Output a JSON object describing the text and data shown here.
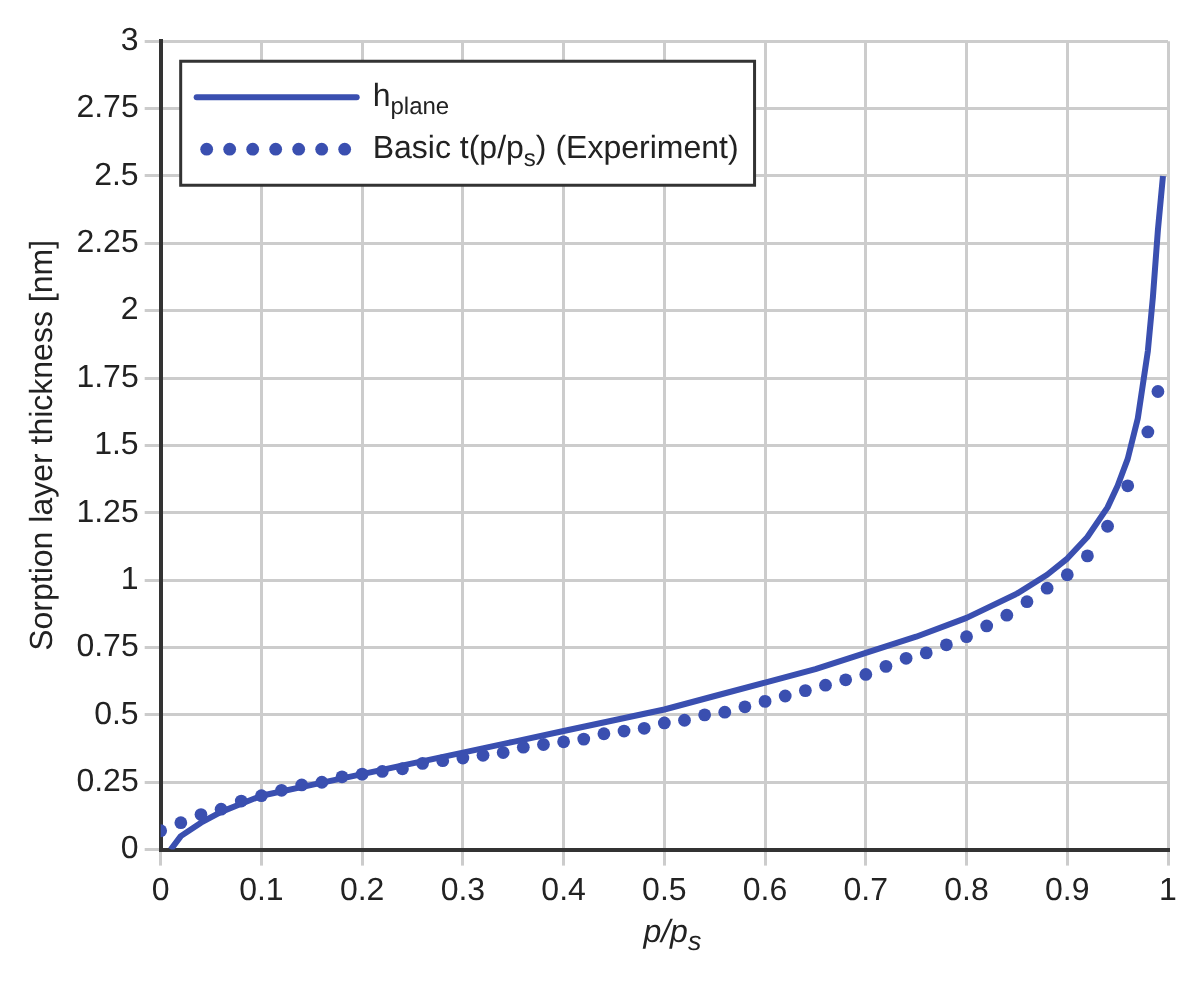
{
  "chart_data": {
    "type": "line",
    "xlabel": "p/p$_{s}$",
    "ylabel": "Sorption layer thickness [nm]",
    "xlim": [
      0,
      1
    ],
    "xticks": [
      0,
      0.1,
      0.2,
      0.3,
      0.4,
      0.5,
      0.6,
      0.7,
      0.8,
      0.9,
      1
    ],
    "ylim": [
      0,
      3
    ],
    "yticks": [
      0,
      0.25,
      0.5,
      0.75,
      1,
      1.25,
      1.5,
      1.75,
      2,
      2.25,
      2.5,
      2.75,
      3
    ],
    "grid": true,
    "legend": "top left",
    "series": [
      {
        "name": "h$_{plane}$",
        "color": "#3a4fb0",
        "line_style": "solid",
        "marker": "none",
        "x": [
          0.01,
          0.02,
          0.04,
          0.06,
          0.08,
          0.1,
          0.15,
          0.2,
          0.25,
          0.3,
          0.35,
          0.4,
          0.45,
          0.5,
          0.55,
          0.6,
          0.65,
          0.7,
          0.75,
          0.8,
          0.85,
          0.88,
          0.9,
          0.92,
          0.94,
          0.95,
          0.96,
          0.97,
          0.98,
          0.985,
          0.99,
          0.995
        ],
        "values": [
          0,
          0.05,
          0.1,
          0.14,
          0.17,
          0.2,
          0.24,
          0.28,
          0.32,
          0.36,
          0.4,
          0.44,
          0.48,
          0.52,
          0.57,
          0.62,
          0.67,
          0.73,
          0.79,
          0.86,
          0.95,
          1.02,
          1.08,
          1.16,
          1.27,
          1.35,
          1.45,
          1.6,
          1.85,
          2.05,
          2.3,
          2.5
        ]
      },
      {
        "name": "Basic t(p/p$_{s}$) (Experiment)",
        "type": "scatter",
        "color": "#3a4fb0",
        "marker": "circle",
        "x": [
          0,
          0.02,
          0.04,
          0.06,
          0.08,
          0.1,
          0.12,
          0.14,
          0.16,
          0.18,
          0.2,
          0.22,
          0.24,
          0.26,
          0.28,
          0.3,
          0.32,
          0.34,
          0.36,
          0.38,
          0.4,
          0.42,
          0.44,
          0.46,
          0.48,
          0.5,
          0.52,
          0.54,
          0.56,
          0.58,
          0.6,
          0.62,
          0.64,
          0.66,
          0.68,
          0.7,
          0.72,
          0.74,
          0.76,
          0.78,
          0.8,
          0.82,
          0.84,
          0.86,
          0.88,
          0.9,
          0.92,
          0.94,
          0.96,
          0.98,
          0.99
        ],
        "values": [
          0.07,
          0.1,
          0.13,
          0.15,
          0.18,
          0.2,
          0.22,
          0.24,
          0.25,
          0.27,
          0.28,
          0.29,
          0.3,
          0.32,
          0.33,
          0.34,
          0.35,
          0.36,
          0.38,
          0.39,
          0.4,
          0.41,
          0.43,
          0.44,
          0.45,
          0.47,
          0.48,
          0.5,
          0.51,
          0.53,
          0.55,
          0.57,
          0.59,
          0.61,
          0.63,
          0.65,
          0.68,
          0.71,
          0.73,
          0.76,
          0.79,
          0.83,
          0.87,
          0.92,
          0.97,
          1.02,
          1.09,
          1.2,
          1.35,
          1.55,
          1.7
        ]
      }
    ]
  }
}
